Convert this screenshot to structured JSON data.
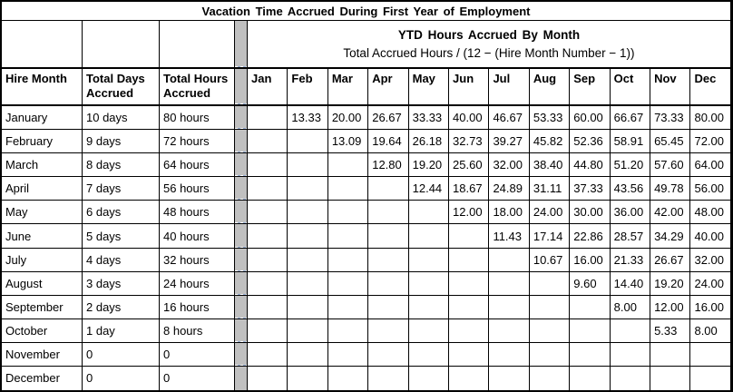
{
  "title": "Vacation Time Accrued During First Year of Employment",
  "ytd": {
    "header": "YTD Hours Accrued By Month",
    "formula": "Total Accrued Hours / (12 − (Hire Month Number − 1))"
  },
  "columns": {
    "hire_month": "Hire Month",
    "total_days": "Total Days Accrued",
    "total_hours": "Total Hours Accrued"
  },
  "month_columns": [
    "Jan",
    "Feb",
    "Mar",
    "Apr",
    "May",
    "Jun",
    "Jul",
    "Aug",
    "Sep",
    "Oct",
    "Nov",
    "Dec"
  ],
  "rows": [
    {
      "hire_month": "January",
      "total_days": "10 days",
      "total_hours": "80 hours",
      "ytd": [
        "",
        "13.33",
        "20.00",
        "26.67",
        "33.33",
        "40.00",
        "46.67",
        "53.33",
        "60.00",
        "66.67",
        "73.33",
        "80.00"
      ]
    },
    {
      "hire_month": "February",
      "total_days": "9 days",
      "total_hours": "72 hours",
      "ytd": [
        "",
        "",
        "13.09",
        "19.64",
        "26.18",
        "32.73",
        "39.27",
        "45.82",
        "52.36",
        "58.91",
        "65.45",
        "72.00"
      ]
    },
    {
      "hire_month": "March",
      "total_days": "8 days",
      "total_hours": "64 hours",
      "ytd": [
        "",
        "",
        "",
        "12.80",
        "19.20",
        "25.60",
        "32.00",
        "38.40",
        "44.80",
        "51.20",
        "57.60",
        "64.00"
      ]
    },
    {
      "hire_month": "April",
      "total_days": "7 days",
      "total_hours": "56 hours",
      "ytd": [
        "",
        "",
        "",
        "",
        "12.44",
        "18.67",
        "24.89",
        "31.11",
        "37.33",
        "43.56",
        "49.78",
        "56.00"
      ]
    },
    {
      "hire_month": "May",
      "total_days": "6 days",
      "total_hours": "48 hours",
      "ytd": [
        "",
        "",
        "",
        "",
        "",
        "12.00",
        "18.00",
        "24.00",
        "30.00",
        "36.00",
        "42.00",
        "48.00"
      ]
    },
    {
      "hire_month": "June",
      "total_days": "5 days",
      "total_hours": "40 hours",
      "ytd": [
        "",
        "",
        "",
        "",
        "",
        "",
        "11.43",
        "17.14",
        "22.86",
        "28.57",
        "34.29",
        "40.00"
      ]
    },
    {
      "hire_month": "July",
      "total_days": "4 days",
      "total_hours": "32 hours",
      "ytd": [
        "",
        "",
        "",
        "",
        "",
        "",
        "",
        "10.67",
        "16.00",
        "21.33",
        "26.67",
        "32.00"
      ]
    },
    {
      "hire_month": "August",
      "total_days": "3 days",
      "total_hours": "24 hours",
      "ytd": [
        "",
        "",
        "",
        "",
        "",
        "",
        "",
        "",
        "9.60",
        "14.40",
        "19.20",
        "24.00"
      ]
    },
    {
      "hire_month": "September",
      "total_days": "2 days",
      "total_hours": "16 hours",
      "ytd": [
        "",
        "",
        "",
        "",
        "",
        "",
        "",
        "",
        "",
        "8.00",
        "12.00",
        "16.00"
      ]
    },
    {
      "hire_month": "October",
      "total_days": "1 day",
      "total_hours": "8 hours",
      "ytd": [
        "",
        "",
        "",
        "",
        "",
        "",
        "",
        "",
        "",
        "",
        "5.33",
        "8.00"
      ]
    },
    {
      "hire_month": "November",
      "total_days": "0",
      "total_hours": "0",
      "ytd": [
        "",
        "",
        "",
        "",
        "",
        "",
        "",
        "",
        "",
        "",
        "",
        ""
      ]
    },
    {
      "hire_month": "December",
      "total_days": "0",
      "total_hours": "0",
      "ytd": [
        "",
        "",
        "",
        "",
        "",
        "",
        "",
        "",
        "",
        "",
        "",
        ""
      ]
    }
  ],
  "colors": {
    "border": "#000000",
    "background": "#ffffff",
    "separator_gray": "#c0c0c0",
    "break_dash_blue": "#9db4d8",
    "break_dash_white": "#ffffff"
  }
}
